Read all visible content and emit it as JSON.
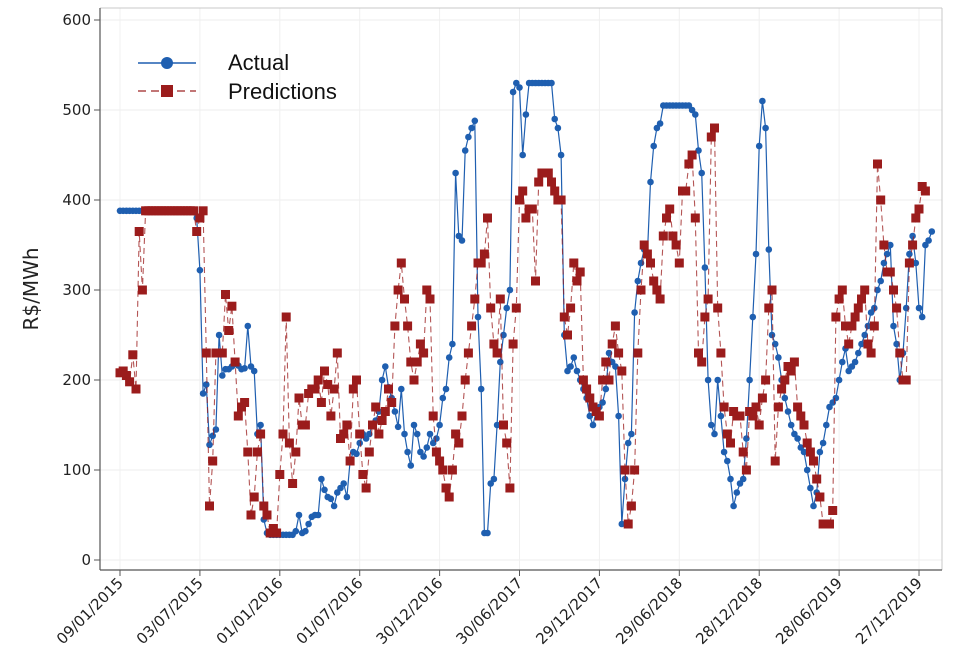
{
  "chart_data": {
    "type": "line",
    "ylabel": "R$/MWh",
    "xlabel": "",
    "ylim": [
      0,
      600
    ],
    "y_ticks": [
      0,
      100,
      200,
      300,
      400,
      500,
      600
    ],
    "x_tick_labels": [
      "09/01/2015",
      "03/07/2015",
      "01/01/2016",
      "01/07/2016",
      "30/12/2016",
      "30/06/2017",
      "29/12/2017",
      "29/06/2018",
      "28/12/2018",
      "28/06/2019",
      "27/12/2019"
    ],
    "x_index_range": [
      0,
      255
    ],
    "x_tick_indices": [
      0,
      25,
      50,
      75,
      100,
      125,
      150,
      175,
      200,
      225,
      250
    ],
    "grid": true,
    "legend_position": "top-left",
    "colors": {
      "actual": "#1f5fb0",
      "predictions": "#9b1c1c"
    },
    "series": [
      {
        "name": "Actual",
        "marker": "circle",
        "line_style": "solid",
        "values": [
          388,
          388,
          388,
          388,
          388,
          388,
          388,
          388,
          388,
          388,
          388,
          388,
          388,
          388,
          388,
          388,
          388,
          388,
          388,
          388,
          388,
          388,
          388,
          388,
          380,
          322,
          185,
          195,
          128,
          138,
          145,
          250,
          205,
          212,
          212,
          215,
          218,
          216,
          212,
          213,
          260,
          215,
          210,
          140,
          150,
          45,
          30,
          28,
          28,
          28,
          28,
          28,
          28,
          28,
          28,
          32,
          50,
          30,
          32,
          40,
          48,
          50,
          50,
          90,
          78,
          70,
          68,
          60,
          75,
          80,
          85,
          70,
          110,
          120,
          118,
          130,
          140,
          135,
          140,
          150,
          155,
          165,
          200,
          215,
          192,
          180,
          165,
          148,
          190,
          140,
          120,
          105,
          150,
          140,
          120,
          115,
          125,
          140,
          130,
          135,
          150,
          180,
          190,
          225,
          240,
          430,
          360,
          355,
          455,
          470,
          480,
          488,
          270,
          190,
          30,
          30,
          85,
          90,
          150,
          220,
          250,
          280,
          300,
          520,
          530,
          525,
          450,
          495,
          530,
          530,
          530,
          530,
          530,
          530,
          530,
          530,
          490,
          480,
          450,
          250,
          210,
          215,
          225,
          210,
          200,
          190,
          180,
          160,
          150,
          165,
          170,
          175,
          190,
          230,
          220,
          215,
          160,
          40,
          90,
          130,
          140,
          275,
          310,
          330,
          345,
          340,
          420,
          460,
          480,
          485,
          505,
          505,
          505,
          505,
          505,
          505,
          505,
          505,
          505,
          500,
          495,
          455,
          430,
          325,
          200,
          150,
          140,
          200,
          160,
          120,
          110,
          90,
          60,
          75,
          85,
          90,
          135,
          200,
          270,
          340,
          460,
          510,
          480,
          345,
          250,
          240,
          225,
          200,
          180,
          165,
          150,
          140,
          135,
          125,
          120,
          100,
          80,
          60,
          75,
          120,
          130,
          150,
          170,
          175,
          180,
          200,
          220,
          235,
          210,
          215,
          220,
          230,
          240,
          250,
          260,
          275,
          280,
          300,
          310,
          330,
          340,
          350,
          260,
          240,
          200,
          230,
          280,
          340,
          360,
          330,
          280,
          270,
          350,
          355,
          365
        ]
      },
      {
        "name": "Predictions",
        "marker": "square",
        "line_style": "dashed",
        "values": [
          208,
          210,
          205,
          198,
          228,
          190,
          365,
          300,
          388,
          388,
          388,
          388,
          388,
          388,
          388,
          388,
          388,
          388,
          388,
          388,
          388,
          388,
          388,
          388,
          365,
          380,
          388,
          230,
          60,
          110,
          230,
          230,
          230,
          295,
          255,
          282,
          220,
          160,
          170,
          175,
          120,
          50,
          70,
          120,
          140,
          60,
          50,
          30,
          35,
          30,
          95,
          140,
          270,
          130,
          85,
          120,
          180,
          150,
          150,
          185,
          190,
          190,
          200,
          175,
          210,
          195,
          160,
          190,
          230,
          135,
          140,
          150,
          110,
          190,
          200,
          140,
          95,
          80,
          120,
          150,
          170,
          140,
          155,
          165,
          190,
          175,
          260,
          300,
          330,
          290,
          260,
          220,
          200,
          220,
          240,
          230,
          300,
          290,
          160,
          120,
          110,
          100,
          80,
          70,
          100,
          140,
          130,
          160,
          200,
          230,
          260,
          290,
          330,
          330,
          340,
          380,
          280,
          240,
          230,
          290,
          150,
          130,
          80,
          240,
          280,
          400,
          410,
          380,
          390,
          390,
          310,
          420,
          430,
          430,
          430,
          420,
          410,
          400,
          400,
          270,
          250,
          280,
          330,
          310,
          320,
          200,
          190,
          180,
          170,
          165,
          160,
          200,
          220,
          200,
          240,
          260,
          230,
          210,
          100,
          40,
          60,
          100,
          230,
          300,
          350,
          340,
          330,
          310,
          300,
          290,
          360,
          380,
          390,
          360,
          350,
          330,
          410,
          410,
          440,
          450,
          380,
          230,
          220,
          270,
          290,
          470,
          480,
          280,
          230,
          170,
          140,
          130,
          165,
          160,
          160,
          120,
          100,
          165,
          160,
          170,
          150,
          180,
          200,
          280,
          300,
          110,
          170,
          190,
          200,
          215,
          210,
          220,
          170,
          160,
          150,
          130,
          120,
          110,
          90,
          70,
          40,
          40,
          40,
          55,
          270,
          290,
          300,
          260,
          240,
          260,
          270,
          280,
          290,
          300,
          240,
          230,
          260,
          440,
          400,
          350,
          320,
          320,
          300,
          280,
          230,
          200,
          200,
          330,
          350,
          380,
          390,
          415,
          410
        ]
      }
    ]
  }
}
